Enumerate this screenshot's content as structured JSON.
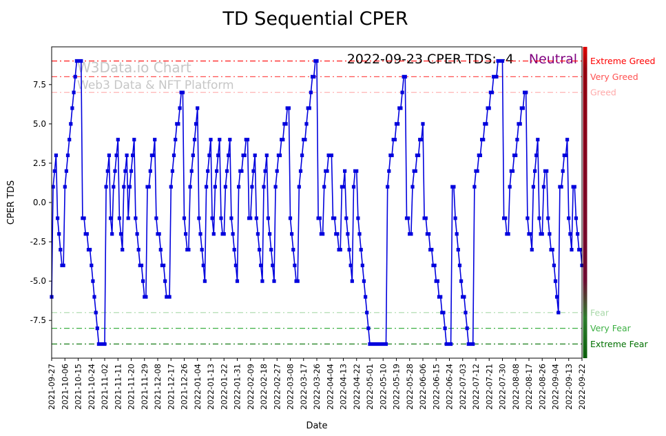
{
  "title": "TD Sequential CPER",
  "watermark": {
    "line1": "W3Data.io Chart",
    "line2": "Web3 Data & NFT Platform"
  },
  "annotation": {
    "text": "2022-09-23 CPER TDS: -4",
    "status": "Neutral",
    "status_color": "#800080"
  },
  "chart_data": {
    "type": "line",
    "title": "TD Sequential CPER",
    "xlabel": "Date",
    "ylabel": "CPER TDS",
    "ylim": [
      -9.9,
      9.9
    ],
    "yticks": [
      "-7.5",
      "-5.0",
      "-2.5",
      "0.0",
      "2.5",
      "5.0",
      "7.5"
    ],
    "line_color": "#0000dd",
    "marker": "square",
    "grid": false,
    "legend": "none",
    "tick_every": 9,
    "tick_labels": [
      "2021-09-27",
      "2021-10-06",
      "2021-10-15",
      "2021-10-24",
      "2021-11-02",
      "2021-11-11",
      "2021-11-20",
      "2021-11-29",
      "2021-12-08",
      "2021-12-17",
      "2021-12-26",
      "2022-01-04",
      "2022-01-13",
      "2022-01-22",
      "2022-01-31",
      "2022-02-09",
      "2022-02-18",
      "2022-02-27",
      "2022-03-08",
      "2022-03-17",
      "2022-03-26",
      "2022-04-04",
      "2022-04-13",
      "2022-04-22",
      "2022-05-01",
      "2022-05-10",
      "2022-05-19",
      "2022-05-28",
      "2022-06-06",
      "2022-06-15",
      "2022-06-24",
      "2022-07-03",
      "2022-07-12",
      "2022-07-21",
      "2022-07-30",
      "2022-08-08",
      "2022-08-17",
      "2022-08-26",
      "2022-09-04",
      "2022-09-13",
      "2022-09-22"
    ],
    "values": [
      -6,
      1,
      2,
      3,
      -1,
      -2,
      -3,
      -4,
      -4,
      1,
      2,
      3,
      4,
      5,
      6,
      7,
      8,
      9,
      9,
      9,
      9,
      -1,
      -1,
      -2,
      -2,
      -3,
      -3,
      -4,
      -5,
      -6,
      -7,
      -8,
      -9,
      -9,
      -9,
      -9,
      -9,
      1,
      2,
      3,
      -1,
      -2,
      1,
      2,
      3,
      4,
      -1,
      -2,
      -3,
      1,
      2,
      3,
      -1,
      1,
      2,
      3,
      4,
      -1,
      -2,
      -3,
      -4,
      -4,
      -5,
      -6,
      -6,
      1,
      1,
      2,
      3,
      3,
      4,
      -1,
      -2,
      -2,
      -3,
      -4,
      -4,
      -5,
      -6,
      -6,
      -6,
      1,
      2,
      3,
      4,
      5,
      5,
      6,
      7,
      7,
      -1,
      -2,
      -3,
      -3,
      1,
      2,
      3,
      4,
      5,
      6,
      -1,
      -2,
      -3,
      -4,
      -5,
      1,
      2,
      3,
      4,
      -1,
      -2,
      1,
      2,
      3,
      4,
      -1,
      -2,
      -2,
      1,
      2,
      3,
      4,
      -1,
      -2,
      -3,
      -4,
      -5,
      1,
      2,
      2,
      3,
      3,
      4,
      4,
      -1,
      -1,
      1,
      2,
      3,
      -1,
      -2,
      -3,
      -4,
      -5,
      1,
      2,
      3,
      -1,
      -2,
      -3,
      -4,
      -5,
      1,
      2,
      3,
      3,
      4,
      4,
      5,
      5,
      6,
      6,
      -1,
      -2,
      -3,
      -4,
      -5,
      -5,
      1,
      2,
      3,
      4,
      4,
      5,
      6,
      6,
      7,
      8,
      8,
      9,
      9,
      -1,
      -1,
      -2,
      -2,
      1,
      2,
      2,
      3,
      3,
      3,
      -1,
      -1,
      -2,
      -2,
      -3,
      -3,
      1,
      1,
      2,
      -1,
      -2,
      -3,
      -4,
      -5,
      1,
      2,
      2,
      -1,
      -2,
      -3,
      -4,
      -5,
      -6,
      -7,
      -8,
      -9,
      -9,
      -9,
      -9,
      -9,
      -9,
      -9,
      -9,
      -9,
      -9,
      -9,
      -9,
      1,
      2,
      3,
      3,
      4,
      4,
      5,
      5,
      6,
      6,
      7,
      8,
      8,
      -1,
      -1,
      -2,
      -2,
      1,
      2,
      2,
      3,
      3,
      4,
      4,
      5,
      -1,
      -1,
      -2,
      -2,
      -3,
      -3,
      -4,
      -4,
      -5,
      -5,
      -6,
      -6,
      -7,
      -7,
      -8,
      -9,
      -9,
      -9,
      -9,
      1,
      1,
      -1,
      -2,
      -3,
      -4,
      -5,
      -6,
      -6,
      -7,
      -8,
      -9,
      -9,
      -9,
      -9,
      1,
      2,
      2,
      3,
      3,
      4,
      4,
      5,
      5,
      6,
      6,
      7,
      7,
      8,
      8,
      8,
      9,
      9,
      9,
      9,
      -1,
      -1,
      -2,
      -2,
      1,
      2,
      2,
      3,
      3,
      4,
      5,
      5,
      6,
      6,
      7,
      7,
      -1,
      -2,
      -2,
      -3,
      1,
      2,
      3,
      4,
      -1,
      -2,
      -2,
      1,
      2,
      2,
      -1,
      -2,
      -3,
      -3,
      -4,
      -5,
      -6,
      -7,
      1,
      1,
      2,
      3,
      3,
      4,
      -1,
      -2,
      -3,
      1,
      1,
      -1,
      -2,
      -3,
      -3,
      -4
    ],
    "thresholds": [
      {
        "value": 9,
        "label": "Extreme Greed",
        "color": "#ff0000"
      },
      {
        "value": 8,
        "label": "Very Greed",
        "color": "#ff5050"
      },
      {
        "value": 7,
        "label": "Greed",
        "color": "#ffaaaa"
      },
      {
        "value": -7,
        "label": "Fear",
        "color": "#a8d8a8"
      },
      {
        "value": -8,
        "label": "Very Fear",
        "color": "#3cb043"
      },
      {
        "value": -9,
        "label": "Extreme Fear",
        "color": "#007000"
      }
    ],
    "gauge": {
      "stops": [
        {
          "o": 0,
          "c": "#e00000"
        },
        {
          "o": 0.07,
          "c": "#94000e"
        },
        {
          "o": 0.75,
          "c": "#6e0b32"
        },
        {
          "o": 0.87,
          "c": "#2e7d2e"
        },
        {
          "o": 1,
          "c": "#0b5e0b"
        }
      ]
    }
  }
}
